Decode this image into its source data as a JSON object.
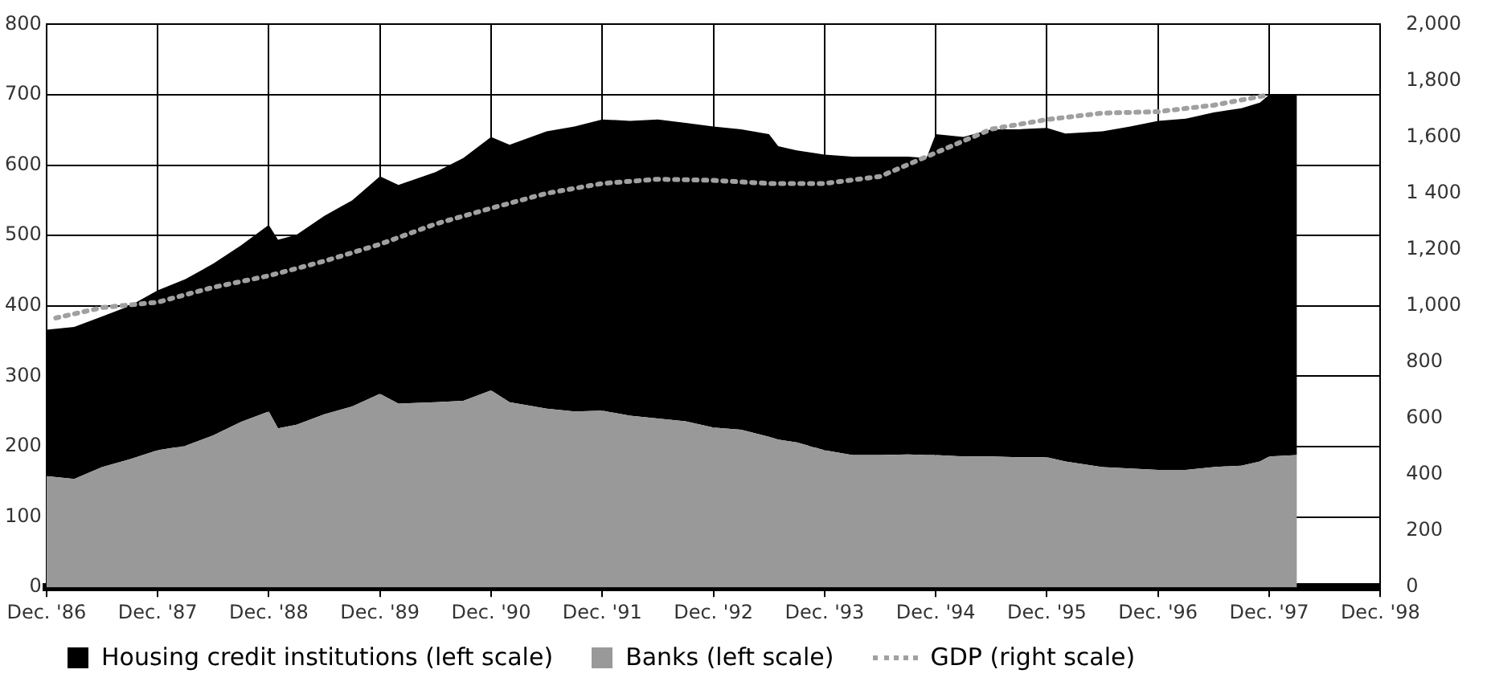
{
  "chart_data": {
    "type": "area",
    "stacked": true,
    "grid": true,
    "legend": "bottom",
    "marker": "none",
    "xlim": [
      "1986-12",
      "1998-12"
    ],
    "xticks": [
      {
        "value": "1986-12",
        "label": "Dec. '86"
      },
      {
        "value": "1987-12",
        "label": "Dec. '87"
      },
      {
        "value": "1988-12",
        "label": "Dec. '88"
      },
      {
        "value": "1989-12",
        "label": "Dec. '89"
      },
      {
        "value": "1990-12",
        "label": "Dec. '90"
      },
      {
        "value": "1991-12",
        "label": "Dec. '91"
      },
      {
        "value": "1992-12",
        "label": "Dec. '92"
      },
      {
        "value": "1993-12",
        "label": "Dec. '93"
      },
      {
        "value": "1994-12",
        "label": "Dec. '94"
      },
      {
        "value": "1995-12",
        "label": "Dec. '95"
      },
      {
        "value": "1996-12",
        "label": "Dec. '96"
      },
      {
        "value": "1997-12",
        "label": "Dec. '97"
      },
      {
        "value": "1998-12",
        "label": "Dec. '98"
      }
    ],
    "ylim": [
      0,
      800
    ],
    "yticks": [
      0,
      100,
      200,
      300,
      400,
      500,
      600,
      700,
      800
    ],
    "y2lim": [
      0,
      2000
    ],
    "y2ticks": [
      0,
      200,
      400,
      600,
      800,
      {
        "value": 1000,
        "label": "1,000"
      },
      {
        "value": 1200,
        "label": "1,200"
      },
      {
        "value": 1400,
        "label": "1 400"
      },
      {
        "value": 1600,
        "label": "1,600"
      },
      {
        "value": 1800,
        "label": "1,800"
      },
      {
        "value": 2000,
        "label": "2,000"
      }
    ],
    "x": [
      "1986-12",
      "1987-03",
      "1987-06",
      "1987-09",
      "1987-12",
      "1988-03",
      "1988-06",
      "1988-09",
      "1988-12",
      "1989-01",
      "1989-03",
      "1989-06",
      "1989-09",
      "1989-12",
      "1990-02",
      "1990-06",
      "1990-09",
      "1990-12",
      "1991-02",
      "1991-06",
      "1991-09",
      "1991-12",
      "1992-03",
      "1992-06",
      "1992-09",
      "1992-12",
      "1993-03",
      "1993-06",
      "1993-07",
      "1993-09",
      "1993-12",
      "1994-03",
      "1994-06",
      "1994-09",
      "1994-11",
      "1994-12",
      "1995-03",
      "1995-06",
      "1995-09",
      "1995-12",
      "1996-02",
      "1996-06",
      "1996-09",
      "1996-12",
      "1997-03",
      "1997-06",
      "1997-09",
      "1997-11",
      "1997-12",
      "1998-03"
    ],
    "series": [
      {
        "name": "Banks (left scale)",
        "color": "#999999",
        "values": [
          158,
          154,
          171,
          182,
          195,
          201,
          216,
          235,
          250,
          226,
          231,
          246,
          257,
          275,
          261,
          263,
          265,
          280,
          263,
          254,
          250,
          251,
          244,
          240,
          236,
          227,
          224,
          214,
          210,
          206,
          195,
          188,
          188,
          189,
          188,
          188,
          186,
          186,
          185,
          185,
          179,
          171,
          169,
          167,
          167,
          171,
          173,
          179,
          186,
          188
        ]
      },
      {
        "name": "Housing credit institutions (left scale)",
        "color": "#000000",
        "values": [
          208,
          216,
          214,
          218,
          227,
          237,
          244,
          251,
          265,
          268,
          270,
          282,
          293,
          309,
          311,
          327,
          345,
          360,
          366,
          394,
          405,
          414,
          419,
          425,
          424,
          428,
          427,
          430,
          417,
          415,
          420,
          424,
          424,
          423,
          422,
          456,
          454,
          465,
          466,
          468,
          466,
          477,
          486,
          496,
          499,
          504,
          508,
          510,
          514,
          512
        ]
      },
      {
        "name": "GDP (right scale)",
        "type": "line",
        "axis": "y2",
        "line_style": "dotted",
        "color": "#a0a0a0",
        "x": [
          "1987-01",
          "1987-06",
          "1987-12",
          "1988-06",
          "1988-12",
          "1989-06",
          "1989-12",
          "1990-06",
          "1990-12",
          "1991-06",
          "1991-12",
          "1992-06",
          "1992-12",
          "1993-06",
          "1993-12",
          "1994-06",
          "1994-12",
          "1995-06",
          "1995-12",
          "1996-06",
          "1996-12",
          "1997-06",
          "1997-12"
        ],
        "values": [
          957,
          994,
          1013,
          1066,
          1107,
          1159,
          1219,
          1291,
          1347,
          1400,
          1435,
          1450,
          1446,
          1435,
          1435,
          1460,
          1544,
          1628,
          1662,
          1685,
          1690,
          1713,
          1750
        ]
      }
    ]
  }
}
